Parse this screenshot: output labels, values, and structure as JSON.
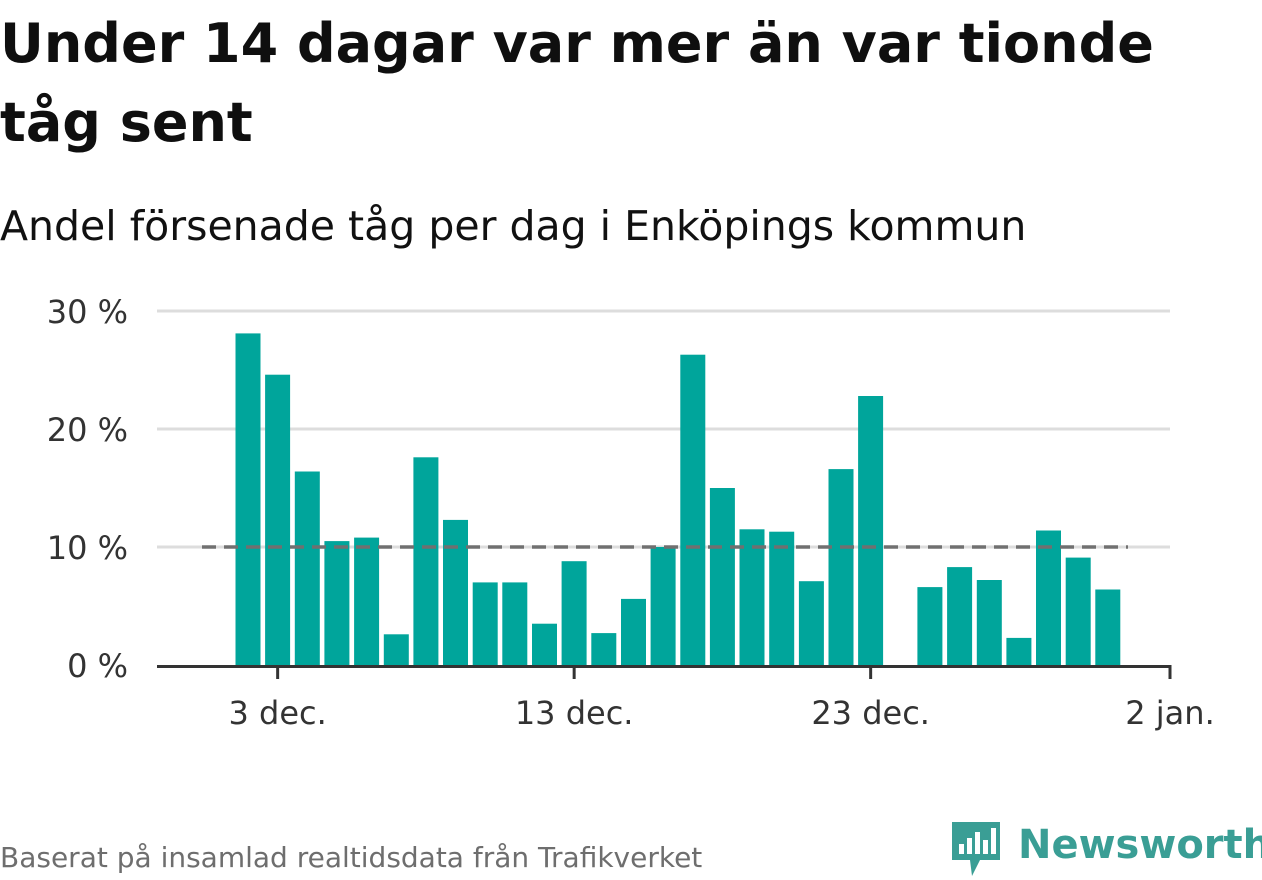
{
  "title": "Under 14 dagar var mer än var tionde tåg sent",
  "subtitle": "Andel försenade tåg per dag i Enköpings kommun",
  "source": "Baserat på insamlad realtidsdata från Trafikverket",
  "brand": {
    "name": "Newsworthy",
    "icon": "newsworthy-logo-icon",
    "color": "#3a9e95"
  },
  "colors": {
    "bar": "#00a59b",
    "reference_line": "#707070",
    "grid": "#dddddd",
    "axis": "#333333"
  },
  "chart_data": {
    "type": "bar",
    "x_unit": "date",
    "y_unit": "%",
    "ylim": [
      0,
      30
    ],
    "yticks": [
      {
        "value": 0,
        "label": "0 %"
      },
      {
        "value": 10,
        "label": "10 %"
      },
      {
        "value": 20,
        "label": "20 %"
      },
      {
        "value": 30,
        "label": "30 %"
      }
    ],
    "xticks": [
      {
        "date": "3 dec.",
        "label": "3 dec."
      },
      {
        "date": "13 dec.",
        "label": "13 dec."
      },
      {
        "date": "23 dec.",
        "label": "23 dec."
      },
      {
        "date": "2 jan.",
        "label": "2 jan."
      }
    ],
    "grid": true,
    "reference_line": {
      "value": 10,
      "style": "dashed"
    },
    "series": [
      {
        "values": [
          {
            "date": "2 dec.",
            "value": 28.1
          },
          {
            "date": "3 dec.",
            "value": 24.6
          },
          {
            "date": "4 dec.",
            "value": 16.4
          },
          {
            "date": "5 dec.",
            "value": 10.5
          },
          {
            "date": "6 dec.",
            "value": 10.8
          },
          {
            "date": "7 dec.",
            "value": 2.6
          },
          {
            "date": "8 dec.",
            "value": 17.6
          },
          {
            "date": "9 dec.",
            "value": 12.3
          },
          {
            "date": "10 dec.",
            "value": 7.0
          },
          {
            "date": "11 dec.",
            "value": 7.0
          },
          {
            "date": "12 dec.",
            "value": 3.5
          },
          {
            "date": "13 dec.",
            "value": 8.8
          },
          {
            "date": "14 dec.",
            "value": 2.7
          },
          {
            "date": "15 dec.",
            "value": 5.6
          },
          {
            "date": "16 dec.",
            "value": 10.0
          },
          {
            "date": "17 dec.",
            "value": 26.3
          },
          {
            "date": "18 dec.",
            "value": 15.0
          },
          {
            "date": "19 dec.",
            "value": 11.5
          },
          {
            "date": "20 dec.",
            "value": 11.3
          },
          {
            "date": "21 dec.",
            "value": 7.1
          },
          {
            "date": "22 dec.",
            "value": 16.6
          },
          {
            "date": "23 dec.",
            "value": 22.8
          },
          {
            "date": "25 dec.",
            "value": 6.6
          },
          {
            "date": "26 dec.",
            "value": 8.3
          },
          {
            "date": "27 dec.",
            "value": 7.2
          },
          {
            "date": "28 dec.",
            "value": 2.3
          },
          {
            "date": "29 dec.",
            "value": 11.4
          },
          {
            "date": "30 dec.",
            "value": 9.1
          },
          {
            "date": "31 dec.",
            "value": 6.4
          }
        ]
      }
    ]
  }
}
